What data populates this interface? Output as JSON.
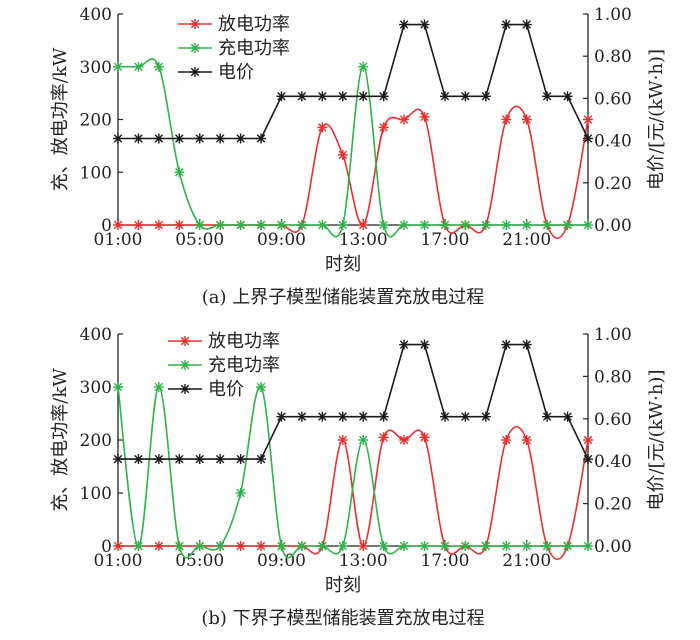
{
  "chart_data": [
    {
      "type": "line",
      "caption": "(a) 上界子模型储能装置充放电过程",
      "xlabel": "时刻",
      "ylabel_left": "充、放电功率/kW",
      "ylabel_right": "电价/[元/(kW·h)]",
      "x_ticks": [
        "01:00",
        "05:00",
        "09:00",
        "13:00",
        "17:00",
        "21:00"
      ],
      "y_left_ticks": [
        "0",
        "100",
        "200",
        "300",
        "400"
      ],
      "y_right_ticks": [
        "0.00",
        "0.20",
        "0.40",
        "0.60",
        "0.80",
        "1.00"
      ],
      "ylim_left": [
        0,
        400
      ],
      "ylim_right": [
        0,
        1
      ],
      "x": [
        1,
        2,
        3,
        4,
        5,
        6,
        7,
        8,
        9,
        10,
        11,
        12,
        13,
        14,
        15,
        16,
        17,
        18,
        19,
        20,
        21,
        22,
        23,
        24
      ],
      "series": [
        {
          "name": "放电功率",
          "axis": "left",
          "color": "#e8302e",
          "values": [
            0,
            0,
            0,
            0,
            0,
            0,
            0,
            0,
            0,
            0,
            185,
            133,
            0,
            185,
            200,
            205,
            0,
            0,
            0,
            200,
            200,
            0,
            0,
            200
          ]
        },
        {
          "name": "充电功率",
          "axis": "left",
          "color": "#2fb34a",
          "values": [
            300,
            300,
            300,
            100,
            0,
            0,
            0,
            0,
            0,
            0,
            0,
            0,
            300,
            0,
            0,
            0,
            0,
            0,
            0,
            0,
            0,
            0,
            0,
            0
          ]
        },
        {
          "name": "电价",
          "axis": "right",
          "color": "#1a1a1a",
          "values": [
            0.41,
            0.41,
            0.41,
            0.41,
            0.41,
            0.41,
            0.41,
            0.41,
            0.61,
            0.61,
            0.61,
            0.61,
            0.61,
            0.61,
            0.95,
            0.95,
            0.61,
            0.61,
            0.61,
            0.95,
            0.95,
            0.61,
            0.61,
            0.41
          ]
        }
      ]
    },
    {
      "type": "line",
      "caption": "(b) 下界子模型储能装置充放电过程",
      "xlabel": "时刻",
      "ylabel_left": "充、放电功率/kW",
      "ylabel_right": "电价/[元/(kW·h)]",
      "x_ticks": [
        "01:00",
        "05:00",
        "09:00",
        "13:00",
        "17:00",
        "21:00"
      ],
      "y_left_ticks": [
        "0",
        "100",
        "200",
        "300",
        "400"
      ],
      "y_right_ticks": [
        "0.00",
        "0.20",
        "0.40",
        "0.60",
        "0.80",
        "1.00"
      ],
      "ylim_left": [
        0,
        400
      ],
      "ylim_right": [
        0,
        1
      ],
      "x": [
        1,
        2,
        3,
        4,
        5,
        6,
        7,
        8,
        9,
        10,
        11,
        12,
        13,
        14,
        15,
        16,
        17,
        18,
        19,
        20,
        21,
        22,
        23,
        24
      ],
      "series": [
        {
          "name": "放电功率",
          "axis": "left",
          "color": "#e8302e",
          "values": [
            0,
            0,
            0,
            0,
            0,
            0,
            0,
            0,
            0,
            0,
            0,
            200,
            0,
            205,
            200,
            205,
            0,
            0,
            0,
            200,
            200,
            0,
            0,
            200
          ]
        },
        {
          "name": "充电功率",
          "axis": "left",
          "color": "#2fb34a",
          "values": [
            300,
            0,
            300,
            0,
            0,
            0,
            100,
            300,
            0,
            0,
            0,
            0,
            200,
            0,
            0,
            0,
            0,
            0,
            0,
            0,
            0,
            0,
            0,
            0
          ]
        },
        {
          "name": "电价",
          "axis": "right",
          "color": "#1a1a1a",
          "values": [
            0.41,
            0.41,
            0.41,
            0.41,
            0.41,
            0.41,
            0.41,
            0.41,
            0.61,
            0.61,
            0.61,
            0.61,
            0.61,
            0.61,
            0.95,
            0.95,
            0.61,
            0.61,
            0.61,
            0.95,
            0.95,
            0.61,
            0.61,
            0.41
          ]
        }
      ]
    }
  ]
}
